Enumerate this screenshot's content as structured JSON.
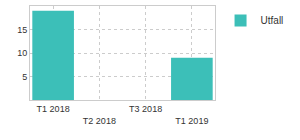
{
  "chart_data": {
    "type": "bar",
    "categories": [
      "T1 2018",
      "T2 2018",
      "T3 2018",
      "T1 2019"
    ],
    "series": [
      {
        "name": "Utfall",
        "color": "#3cbfb8",
        "values": [
          19,
          null,
          null,
          9
        ]
      }
    ],
    "ylim": [
      0,
      20
    ],
    "yticks": [
      5,
      10,
      15
    ],
    "grid": true,
    "legend": "top right"
  }
}
